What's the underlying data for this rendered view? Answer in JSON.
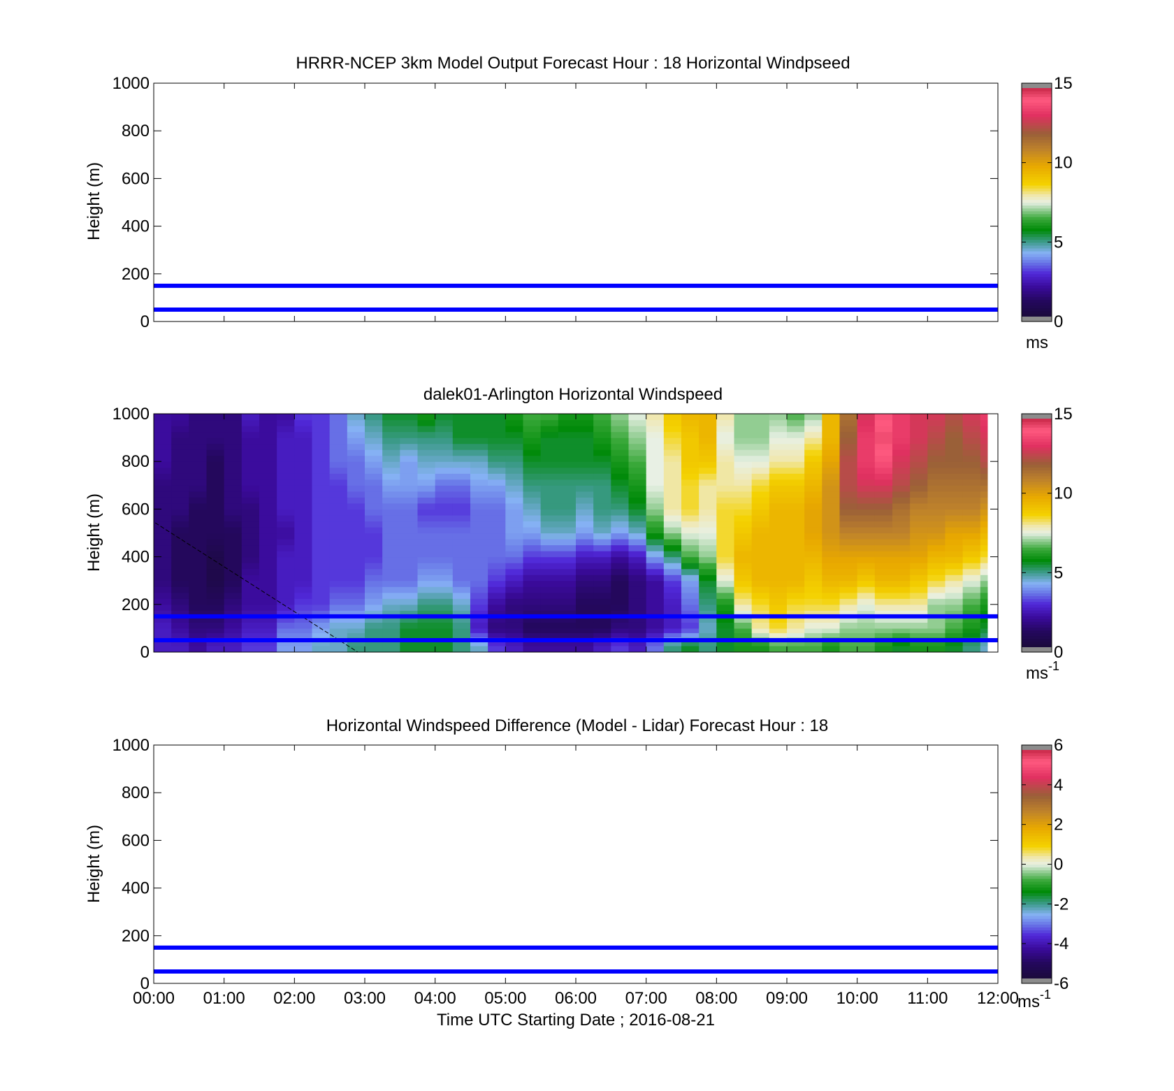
{
  "figure": {
    "background": "#ffffff",
    "footer_label": "Time UTC  Starting Date ; 2016-08-21"
  },
  "chart_data": [
    {
      "type": "heatmap",
      "title": "HRRR-NCEP 3km Model Output   Forecast Hour : 18 Horizontal Windpseed",
      "xlabel": "",
      "ylabel": "Height (m)",
      "xlim": [
        "00:00",
        "12:00"
      ],
      "ylim": [
        0,
        1000
      ],
      "x_ticks": [
        "00:00",
        "01:00",
        "02:00",
        "03:00",
        "04:00",
        "05:00",
        "06:00",
        "07:00",
        "08:00",
        "09:00",
        "10:00",
        "11:00",
        "12:00"
      ],
      "show_x_tick_labels": false,
      "y_ticks": [
        0,
        200,
        400,
        600,
        800,
        1000
      ],
      "grid": false,
      "colorbar": {
        "min": 0,
        "max": 15,
        "ticks": [
          0,
          5,
          10,
          15
        ],
        "unit": "ms",
        "unit_superscript": ""
      },
      "reference_lines": [
        {
          "height_m": 50,
          "color": "#0000ff"
        },
        {
          "height_m": 150,
          "color": "#0000ff"
        }
      ],
      "field": null
    },
    {
      "type": "heatmap",
      "title": "dalek01-Arlington  Horizontal Windspeed",
      "xlabel": "",
      "ylabel": "Height (m)",
      "xlim": [
        "00:00",
        "12:00"
      ],
      "ylim": [
        0,
        1000
      ],
      "x_ticks": [
        "00:00",
        "01:00",
        "02:00",
        "03:00",
        "04:00",
        "05:00",
        "06:00",
        "07:00",
        "08:00",
        "09:00",
        "10:00",
        "11:00",
        "12:00"
      ],
      "show_x_tick_labels": false,
      "y_ticks": [
        0,
        200,
        400,
        600,
        800,
        1000
      ],
      "grid": false,
      "colorbar": {
        "min": 0,
        "max": 15,
        "ticks": [
          0,
          5,
          10,
          15
        ],
        "unit": "ms",
        "unit_superscript": "-1"
      },
      "reference_lines": [
        {
          "height_m": 50,
          "color": "#0000ff"
        },
        {
          "height_m": 150,
          "color": "#0000ff"
        }
      ],
      "field": {
        "time_columns_h": [
          0.0,
          0.25,
          0.5,
          0.75,
          1.0,
          1.25,
          1.5,
          1.75,
          2.0,
          2.25,
          2.5,
          2.75,
          3.0,
          3.25,
          3.5,
          3.75,
          4.0,
          4.25,
          4.5,
          4.75,
          5.0,
          5.25,
          5.5,
          5.75,
          6.0,
          6.25,
          6.5,
          6.75,
          7.0,
          7.25,
          7.5,
          7.75,
          8.0,
          8.25,
          8.5,
          8.75,
          9.0,
          9.25,
          9.5,
          9.75,
          10.0,
          10.25,
          10.5,
          10.75,
          11.0,
          11.25,
          11.5,
          11.75
        ],
        "data_end_h": 11.85,
        "height_rows_m": [
          25,
          100,
          200,
          300,
          400,
          500,
          600,
          700,
          800,
          900,
          1000
        ],
        "wind_speed_ms": [
          [
            2.5,
            2.5,
            2.0,
            1.5,
            1.5,
            1.5,
            1.5,
            1.5,
            2.0,
            2.0,
            2.0
          ],
          [
            2.5,
            2.0,
            1.5,
            1.0,
            1.0,
            1.0,
            1.5,
            1.5,
            1.5,
            1.5,
            2.0
          ],
          [
            2.0,
            1.5,
            1.0,
            1.0,
            1.0,
            1.0,
            1.0,
            1.5,
            1.5,
            1.5,
            1.5
          ],
          [
            2.5,
            1.5,
            1.0,
            0.5,
            0.5,
            1.0,
            1.0,
            1.0,
            1.0,
            1.5,
            1.5
          ],
          [
            2.5,
            2.0,
            1.5,
            1.0,
            1.0,
            1.0,
            1.5,
            1.5,
            1.5,
            1.5,
            1.5
          ],
          [
            3.0,
            2.5,
            2.0,
            2.0,
            1.5,
            1.5,
            1.5,
            2.0,
            2.0,
            2.0,
            2.5
          ],
          [
            3.0,
            2.5,
            2.0,
            2.0,
            2.0,
            2.0,
            2.0,
            2.0,
            2.0,
            2.0,
            2.0
          ],
          [
            4.0,
            3.5,
            2.5,
            2.5,
            2.5,
            2.0,
            2.5,
            2.5,
            2.5,
            2.5,
            2.0
          ],
          [
            4.0,
            3.5,
            3.0,
            2.5,
            2.5,
            2.5,
            2.5,
            2.5,
            2.5,
            2.5,
            3.0
          ],
          [
            4.5,
            4.0,
            3.0,
            3.0,
            3.0,
            3.0,
            3.0,
            3.0,
            3.0,
            3.0,
            3.0
          ],
          [
            4.5,
            4.5,
            3.5,
            3.0,
            3.0,
            3.0,
            3.0,
            3.0,
            3.5,
            3.5,
            3.5
          ],
          [
            5.0,
            4.5,
            3.5,
            3.0,
            3.0,
            3.0,
            3.0,
            3.5,
            3.5,
            4.0,
            4.5
          ],
          [
            5.0,
            5.0,
            4.0,
            3.5,
            3.0,
            3.0,
            3.5,
            3.5,
            4.0,
            4.5,
            5.0
          ],
          [
            5.0,
            5.0,
            4.5,
            3.5,
            3.5,
            3.5,
            3.5,
            4.0,
            4.5,
            5.0,
            5.5
          ],
          [
            5.5,
            5.5,
            4.5,
            3.5,
            3.5,
            3.5,
            3.5,
            4.0,
            4.0,
            5.0,
            5.5
          ],
          [
            5.5,
            5.5,
            5.0,
            4.0,
            3.5,
            3.5,
            3.0,
            4.0,
            4.5,
            5.0,
            6.0
          ],
          [
            5.5,
            5.5,
            5.0,
            4.0,
            3.5,
            3.5,
            3.0,
            3.5,
            4.5,
            5.0,
            5.5
          ],
          [
            5.0,
            5.0,
            4.5,
            3.5,
            3.5,
            3.5,
            3.0,
            3.5,
            4.5,
            5.5,
            5.5
          ],
          [
            4.5,
            2.5,
            3.0,
            3.5,
            3.5,
            3.5,
            3.5,
            4.0,
            4.5,
            5.5,
            5.5
          ],
          [
            3.0,
            1.5,
            2.0,
            3.0,
            3.5,
            3.5,
            3.5,
            4.0,
            5.0,
            5.5,
            5.5
          ],
          [
            2.5,
            1.5,
            1.5,
            2.5,
            3.5,
            4.0,
            4.0,
            4.5,
            5.0,
            5.5,
            6.0
          ],
          [
            2.0,
            1.0,
            1.5,
            2.0,
            3.0,
            4.0,
            4.5,
            5.0,
            5.5,
            6.0,
            6.5
          ],
          [
            2.0,
            1.0,
            1.5,
            2.0,
            3.0,
            4.5,
            5.0,
            5.0,
            5.5,
            5.5,
            6.5
          ],
          [
            2.0,
            1.0,
            1.5,
            2.0,
            3.0,
            4.5,
            5.0,
            5.0,
            5.5,
            5.5,
            6.0
          ],
          [
            2.0,
            1.0,
            1.0,
            1.5,
            2.5,
            4.0,
            4.5,
            5.0,
            5.5,
            5.5,
            6.0
          ],
          [
            2.5,
            1.0,
            1.0,
            1.5,
            2.5,
            4.5,
            5.0,
            5.0,
            5.5,
            6.0,
            6.5
          ],
          [
            3.0,
            1.5,
            1.0,
            1.0,
            2.0,
            4.0,
            5.0,
            5.5,
            6.0,
            6.5,
            7.0
          ],
          [
            2.5,
            1.5,
            1.5,
            1.5,
            2.5,
            4.5,
            5.5,
            6.0,
            6.5,
            7.0,
            7.5
          ],
          [
            3.5,
            2.0,
            2.0,
            2.0,
            4.0,
            6.0,
            7.0,
            7.5,
            7.5,
            7.5,
            8.0
          ],
          [
            5.0,
            2.5,
            2.5,
            3.0,
            5.0,
            7.0,
            8.0,
            8.0,
            8.0,
            8.5,
            9.0
          ],
          [
            5.5,
            3.0,
            3.5,
            4.0,
            6.5,
            7.5,
            8.5,
            8.5,
            9.0,
            9.0,
            9.5
          ],
          [
            5.0,
            4.5,
            5.0,
            5.5,
            7.0,
            7.5,
            8.0,
            8.0,
            9.0,
            9.5,
            9.5
          ],
          [
            5.5,
            5.5,
            6.0,
            7.5,
            8.5,
            8.5,
            8.5,
            8.0,
            8.0,
            7.5,
            8.0
          ],
          [
            6.0,
            6.5,
            8.0,
            9.0,
            9.5,
            9.0,
            8.5,
            8.0,
            7.5,
            7.0,
            7.0
          ],
          [
            6.0,
            8.0,
            8.5,
            9.5,
            9.5,
            9.5,
            9.0,
            8.5,
            7.5,
            7.0,
            7.0
          ],
          [
            6.5,
            8.5,
            9.0,
            9.5,
            9.5,
            9.5,
            9.5,
            9.0,
            8.0,
            7.5,
            7.0
          ],
          [
            6.5,
            8.0,
            8.5,
            9.5,
            9.5,
            9.5,
            9.5,
            9.0,
            8.0,
            7.5,
            6.5
          ],
          [
            6.5,
            7.5,
            8.5,
            9.0,
            9.5,
            10.0,
            10.0,
            9.5,
            9.0,
            8.0,
            7.0
          ],
          [
            6.0,
            7.5,
            8.5,
            9.5,
            10.0,
            10.5,
            10.5,
            10.5,
            10.0,
            9.5,
            9.5
          ],
          [
            6.5,
            7.0,
            8.0,
            9.5,
            10.0,
            11.0,
            12.0,
            12.5,
            12.5,
            12.0,
            11.5
          ],
          [
            6.5,
            7.0,
            7.5,
            9.0,
            10.0,
            11.0,
            12.0,
            13.0,
            13.5,
            13.5,
            13.0
          ],
          [
            6.0,
            7.0,
            8.0,
            9.5,
            10.0,
            11.0,
            12.0,
            13.0,
            14.0,
            14.5,
            14.0
          ],
          [
            5.5,
            7.0,
            8.0,
            9.5,
            10.0,
            11.0,
            11.5,
            12.5,
            13.0,
            13.5,
            13.5
          ],
          [
            6.0,
            7.0,
            8.0,
            9.0,
            10.0,
            10.5,
            11.0,
            12.0,
            12.5,
            13.0,
            13.0
          ],
          [
            6.0,
            7.0,
            7.0,
            8.5,
            9.5,
            10.5,
            11.0,
            11.5,
            12.0,
            12.5,
            13.0
          ],
          [
            5.5,
            6.5,
            7.0,
            8.0,
            9.5,
            10.0,
            11.0,
            11.5,
            12.0,
            12.0,
            12.5
          ],
          [
            5.0,
            6.0,
            6.5,
            7.5,
            9.0,
            10.0,
            11.0,
            11.5,
            12.0,
            12.5,
            13.0
          ],
          [
            4.5,
            5.5,
            6.0,
            7.0,
            8.5,
            9.5,
            10.5,
            11.5,
            12.5,
            13.0,
            13.5
          ]
        ]
      }
    },
    {
      "type": "heatmap",
      "title": "Horizontal Windspeed Difference (Model - Lidar) Forecast Hour : 18",
      "xlabel": "Time UTC  Starting Date ; 2016-08-21",
      "ylabel": "Height (m)",
      "xlim": [
        "00:00",
        "12:00"
      ],
      "ylim": [
        0,
        1000
      ],
      "x_ticks": [
        "00:00",
        "01:00",
        "02:00",
        "03:00",
        "04:00",
        "05:00",
        "06:00",
        "07:00",
        "08:00",
        "09:00",
        "10:00",
        "11:00",
        "12:00"
      ],
      "show_x_tick_labels": true,
      "y_ticks": [
        0,
        200,
        400,
        600,
        800,
        1000
      ],
      "grid": false,
      "colorbar": {
        "min": -6,
        "max": 6,
        "ticks": [
          -6,
          -4,
          -2,
          0,
          2,
          4,
          6
        ],
        "unit": "ms",
        "unit_superscript": "-1"
      },
      "reference_lines": [
        {
          "height_m": 50,
          "color": "#0000ff"
        },
        {
          "height_m": 150,
          "color": "#0000ff"
        }
      ],
      "field": null
    }
  ],
  "colormap": {
    "name": "windspeed",
    "under_over_color": "#8c8c8c",
    "stops": [
      [
        0.0,
        "#1a0a3a"
      ],
      [
        0.07,
        "#24085e"
      ],
      [
        0.13,
        "#3a0a9a"
      ],
      [
        0.19,
        "#5028d8"
      ],
      [
        0.24,
        "#6a7ae8"
      ],
      [
        0.28,
        "#86b2f4"
      ],
      [
        0.33,
        "#3a9a86"
      ],
      [
        0.38,
        "#008a08"
      ],
      [
        0.43,
        "#3aa83a"
      ],
      [
        0.47,
        "#9ad09a"
      ],
      [
        0.5,
        "#e8f0e4"
      ],
      [
        0.53,
        "#f0e8b0"
      ],
      [
        0.58,
        "#f4d200"
      ],
      [
        0.66,
        "#e8a800"
      ],
      [
        0.73,
        "#c0842a"
      ],
      [
        0.8,
        "#9a6038"
      ],
      [
        0.88,
        "#e03060"
      ],
      [
        0.95,
        "#ff5a80"
      ],
      [
        1.0,
        "#c82848"
      ]
    ]
  }
}
